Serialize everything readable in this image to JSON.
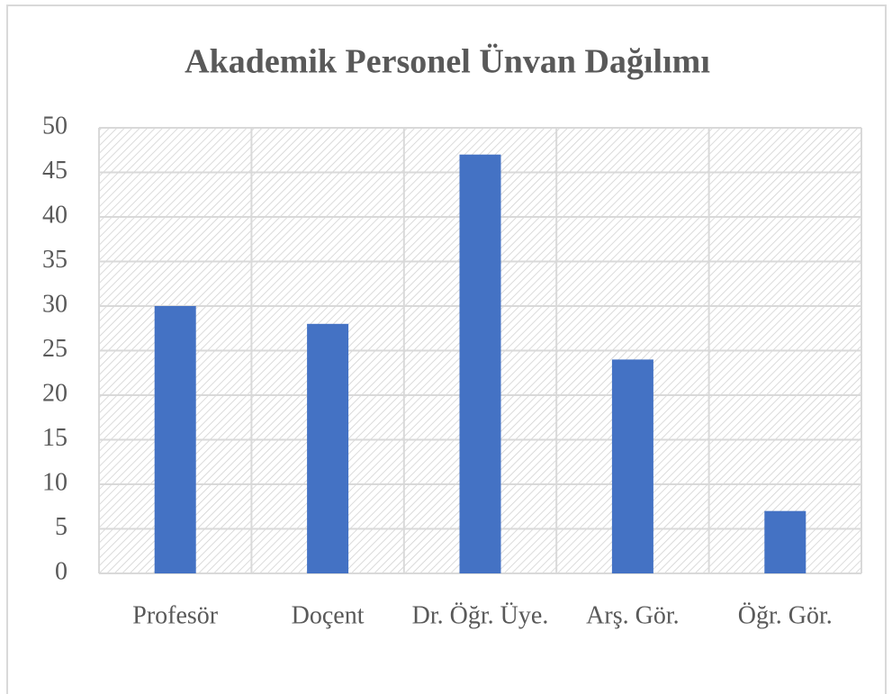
{
  "chart_data": {
    "type": "bar",
    "title": "Akademik Personel Ünvan Dağılımı",
    "categories": [
      "Profesör",
      "Doçent",
      "Dr. Öğr. Üye.",
      "Arş. Gör.",
      "Öğr. Gör."
    ],
    "values": [
      30,
      28,
      47,
      24,
      7
    ],
    "color": "#4472c4",
    "ylim": [
      0,
      50
    ],
    "yticks": [
      0,
      5,
      10,
      15,
      20,
      25,
      30,
      35,
      40,
      45,
      50
    ],
    "grid": true
  }
}
